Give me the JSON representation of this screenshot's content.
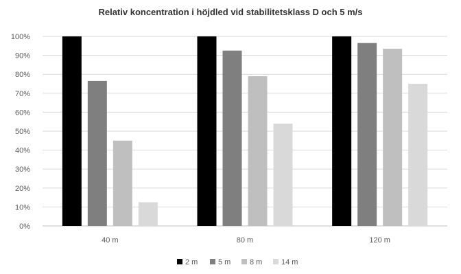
{
  "chart_data": {
    "type": "bar",
    "title": "Relativ koncentration  i höjdled vid stabilitetsklass D och 5 m/s",
    "xlabel": "",
    "ylabel": "",
    "categories": [
      "40 m",
      "80 m",
      "120 m"
    ],
    "ylim": [
      0,
      100
    ],
    "yticks": [
      0,
      10,
      20,
      30,
      40,
      50,
      60,
      70,
      80,
      90,
      100
    ],
    "ytick_labels": [
      "0%",
      "10%",
      "20%",
      "30%",
      "40%",
      "50%",
      "60%",
      "70%",
      "80%",
      "90%",
      "100%"
    ],
    "grid": true,
    "legend_position": "bottom",
    "series": [
      {
        "name": "2 m",
        "color": "#000000",
        "values": [
          100,
          100,
          100
        ]
      },
      {
        "name": "5 m",
        "color": "#7f7f7f",
        "values": [
          76.5,
          92.5,
          96.5
        ]
      },
      {
        "name": "8 m",
        "color": "#bfbfbf",
        "values": [
          45,
          79,
          93.5
        ]
      },
      {
        "name": "14 m",
        "color": "#d9d9d9",
        "values": [
          12.5,
          54,
          75
        ]
      }
    ]
  }
}
